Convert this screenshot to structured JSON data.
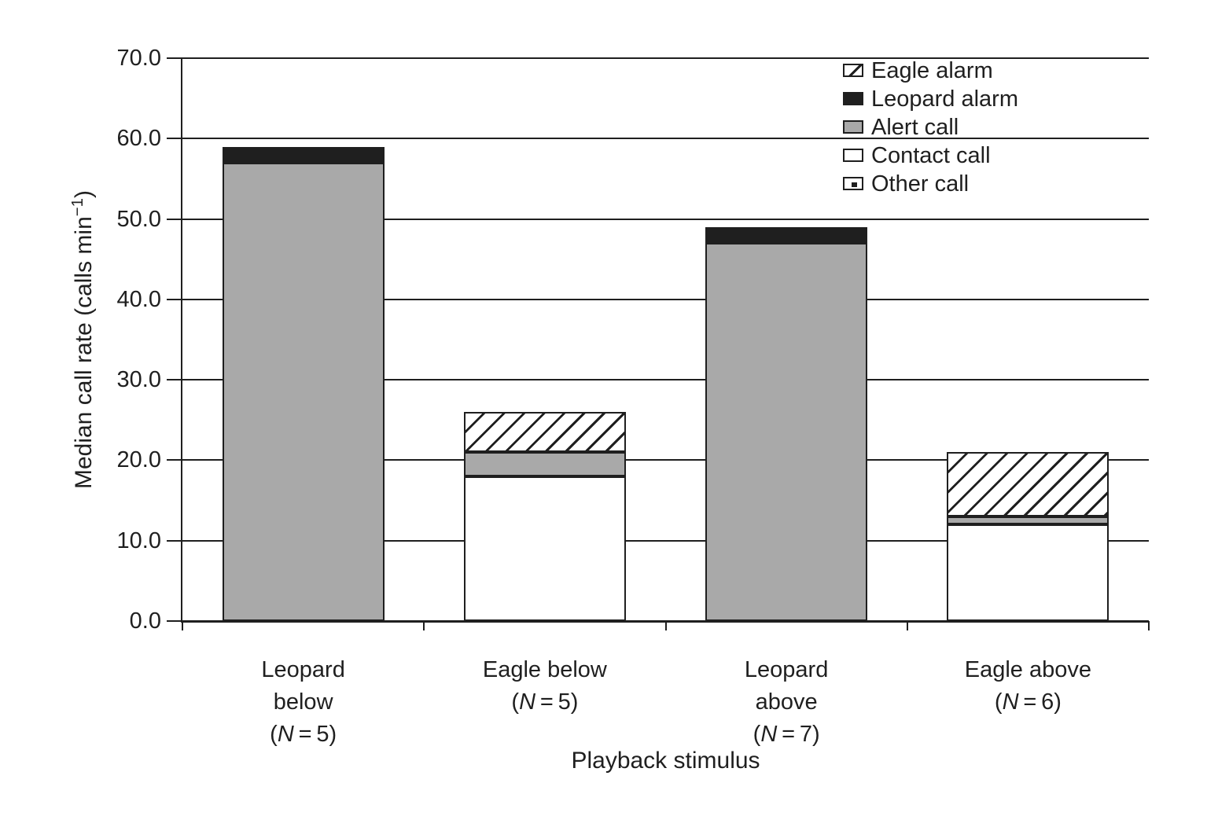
{
  "chart_data": {
    "type": "bar",
    "stacked": true,
    "title": "",
    "xlabel": "Playback stimulus",
    "ylabel": "Median call rate (calls min⁻¹)",
    "ylabel_parts": {
      "pre": "Median call rate (calls min",
      "sup": "−1",
      "post": ")"
    },
    "ylim": [
      0,
      70
    ],
    "ytick_step": 10,
    "ytick_labels": [
      "0.0",
      "10.0",
      "20.0",
      "30.0",
      "40.0",
      "50.0",
      "60.0",
      "70.0"
    ],
    "grid": true,
    "legend_position": "top-right inside plot",
    "categories": [
      {
        "label": "Leopard below (N=5)",
        "lines": [
          "Leopard",
          "below",
          "(N=5)"
        ]
      },
      {
        "label": "Eagle below (N=5)",
        "lines": [
          "Eagle below",
          "(N=5)"
        ]
      },
      {
        "label": "Leopard above (N=7)",
        "lines": [
          "Leopard",
          "above",
          "(N=7)"
        ]
      },
      {
        "label": "Eagle above (N=6)",
        "lines": [
          "Eagle above",
          "(N=6)"
        ]
      }
    ],
    "series": [
      {
        "name": "Contact call",
        "fill": "white",
        "values": [
          0,
          18,
          0,
          12
        ]
      },
      {
        "name": "Alert call",
        "fill": "gray",
        "values": [
          57,
          3,
          47,
          1
        ]
      },
      {
        "name": "Leopard alarm",
        "fill": "black",
        "values": [
          2,
          0,
          2,
          0
        ]
      },
      {
        "name": "Eagle alarm",
        "fill": "hatch",
        "values": [
          0,
          5,
          0,
          8
        ]
      },
      {
        "name": "Other call",
        "fill": "dot",
        "values": [
          0,
          0,
          0,
          0
        ]
      }
    ],
    "bar_totals": [
      59,
      26,
      49,
      21
    ],
    "legend_items": [
      {
        "label": "Eagle alarm",
        "swatch": "hatch"
      },
      {
        "label": "Leopard alarm",
        "swatch": "black"
      },
      {
        "label": "Alert call",
        "swatch": "gray"
      },
      {
        "label": "Contact call",
        "swatch": "white"
      },
      {
        "label": "Other call",
        "swatch": "dot"
      }
    ],
    "colors": {
      "ink": "#1f1f1f",
      "gray": "#a9a9a9",
      "white": "#ffffff",
      "background": "#ffffff"
    }
  }
}
